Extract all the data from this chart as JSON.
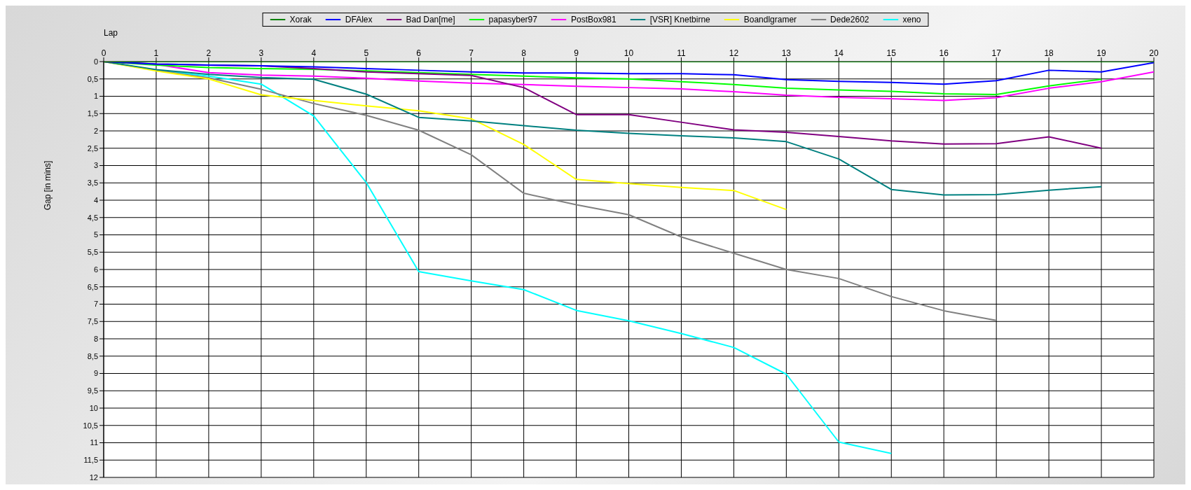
{
  "chart_data": {
    "type": "line",
    "xlabel": "Lap",
    "ylabel": "Gap [in mins]",
    "x": [
      0,
      1,
      2,
      3,
      4,
      5,
      6,
      7,
      8,
      9,
      10,
      11,
      12,
      13,
      14,
      15,
      16,
      17,
      18,
      19,
      20
    ],
    "xlim": [
      0,
      20
    ],
    "xticks": [
      0,
      1,
      2,
      3,
      4,
      5,
      6,
      7,
      8,
      9,
      10,
      11,
      12,
      13,
      14,
      15,
      16,
      17,
      18,
      19,
      20
    ],
    "ylim": [
      12,
      0
    ],
    "yticks": [
      0,
      {
        "value": 0.5,
        "label": "0,5"
      },
      1,
      {
        "value": 1.5,
        "label": "1,5"
      },
      2,
      {
        "value": 2.5,
        "label": "2,5"
      },
      3,
      {
        "value": 3.5,
        "label": "3,5"
      },
      4,
      {
        "value": 4.5,
        "label": "4,5"
      },
      5,
      {
        "value": 5.5,
        "label": "5,5"
      },
      6,
      {
        "value": 6.5,
        "label": "6,5"
      },
      7,
      {
        "value": 7.5,
        "label": "7,5"
      },
      8,
      {
        "value": 8.5,
        "label": "8,5"
      },
      9,
      {
        "value": 9.5,
        "label": "9,5"
      },
      10,
      {
        "value": 10.5,
        "label": "10,5"
      },
      11,
      {
        "value": 11.5,
        "label": "11,5"
      },
      12
    ],
    "grid": true,
    "legend": "top",
    "marker": "none",
    "line_style": "solid",
    "series": [
      {
        "name": "Xorak",
        "color": "#008000",
        "values": [
          0,
          0,
          0,
          0,
          0,
          0,
          0,
          0,
          0,
          0,
          0,
          0,
          0,
          0,
          0,
          0,
          0,
          0,
          0,
          0,
          0
        ]
      },
      {
        "name": "DFAlex",
        "color": "#0000ff",
        "values": [
          0,
          0.07,
          0.1,
          0.12,
          0.15,
          0.2,
          0.25,
          0.3,
          0.33,
          0.33,
          0.35,
          0.35,
          0.38,
          0.52,
          0.57,
          0.6,
          0.65,
          0.55,
          0.25,
          0.3,
          0.03
        ]
      },
      {
        "name": "Bad Dan[me]",
        "color": "#800080",
        "x": [
          0,
          1,
          2,
          3,
          4,
          5,
          6,
          7,
          8,
          9,
          10,
          11,
          12,
          13,
          14,
          15,
          16,
          17,
          18,
          19
        ],
        "values": [
          0,
          0.07,
          0.1,
          0.12,
          0.2,
          0.3,
          0.35,
          0.4,
          0.75,
          1.53,
          1.53,
          1.75,
          1.97,
          2.04,
          2.16,
          2.29,
          2.38,
          2.37,
          2.17,
          2.5
        ]
      },
      {
        "name": "papasyber97",
        "color": "#00ff00",
        "x": [
          0,
          1,
          2,
          3,
          4,
          5,
          6,
          7,
          8,
          9,
          10,
          11,
          12,
          13,
          14,
          15,
          16,
          17,
          18,
          19
        ],
        "values": [
          0,
          0.1,
          0.17,
          0.2,
          0.22,
          0.27,
          0.32,
          0.37,
          0.42,
          0.47,
          0.5,
          0.58,
          0.66,
          0.77,
          0.82,
          0.86,
          0.93,
          0.95,
          0.7,
          0.51
        ]
      },
      {
        "name": "PostBox981",
        "color": "#ff00ff",
        "values": [
          0,
          0.08,
          0.32,
          0.39,
          0.42,
          0.48,
          0.56,
          0.62,
          0.66,
          0.71,
          0.75,
          0.79,
          0.87,
          0.97,
          1.03,
          1.07,
          1.12,
          1.04,
          0.77,
          0.58,
          0.3
        ]
      },
      {
        "name": "[VSR] Knetbirne",
        "color": "#008080",
        "x": [
          0,
          1,
          2,
          3,
          4,
          5,
          6,
          7,
          8,
          9,
          10,
          11,
          12,
          13,
          14,
          15,
          16,
          17,
          18,
          19
        ],
        "values": [
          0,
          0.23,
          0.37,
          0.46,
          0.51,
          0.94,
          1.61,
          1.71,
          1.85,
          1.98,
          2.07,
          2.14,
          2.2,
          2.31,
          2.81,
          3.69,
          3.85,
          3.84,
          3.71,
          3.61
        ]
      },
      {
        "name": "Boandlgramer",
        "color": "#ffff00",
        "x": [
          0,
          1,
          2,
          3,
          4,
          5,
          6,
          7,
          8,
          9,
          10,
          11,
          12,
          13
        ],
        "values": [
          0,
          0.27,
          0.5,
          0.96,
          1.12,
          1.28,
          1.42,
          1.65,
          2.39,
          3.4,
          3.52,
          3.63,
          3.72,
          4.27
        ]
      },
      {
        "name": "Dede2602",
        "color": "#808080",
        "x": [
          0,
          1,
          2,
          3,
          4,
          5,
          6,
          7,
          8,
          9,
          10,
          11,
          12,
          13,
          14,
          15,
          16,
          17
        ],
        "values": [
          0,
          0.25,
          0.47,
          0.8,
          1.21,
          1.55,
          1.98,
          2.69,
          3.8,
          4.13,
          4.42,
          5.06,
          5.53,
          6.0,
          6.26,
          6.78,
          7.19,
          7.47
        ]
      },
      {
        "name": "xeno",
        "color": "#00ffff",
        "x": [
          0,
          1,
          2,
          3,
          4,
          5,
          6,
          7,
          8,
          9,
          10,
          11,
          12,
          13,
          14,
          15
        ],
        "values": [
          0,
          0.25,
          0.42,
          0.65,
          1.57,
          3.49,
          6.06,
          6.33,
          6.58,
          7.18,
          7.48,
          7.85,
          8.25,
          9.02,
          10.98,
          11.31
        ]
      }
    ]
  }
}
